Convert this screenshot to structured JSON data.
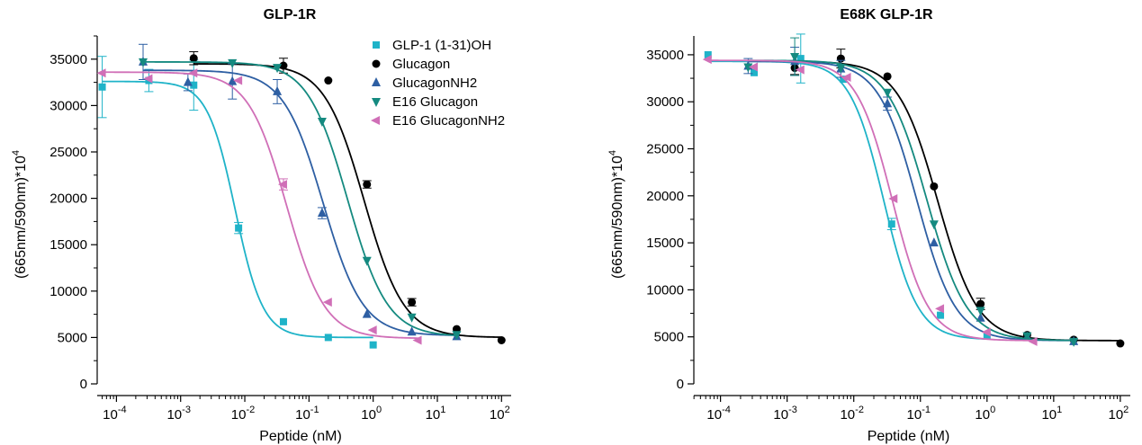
{
  "chart_data": [
    {
      "type": "scatter",
      "title": "GLP-1R",
      "xlabel": "Peptide (nM)",
      "ylabel": "(665nm/590nm)*10",
      "ylabel_sup": "4",
      "x_scale": "log",
      "xlim_exp": [
        -4.3,
        2.15
      ],
      "ylim": [
        0,
        37500
      ],
      "yticks": [
        0,
        5000,
        10000,
        15000,
        20000,
        25000,
        30000,
        35000
      ],
      "xticks": [
        {
          "base": "10",
          "exp": "-4",
          "value": 0.0001
        },
        {
          "base": "10",
          "exp": "-3",
          "value": 0.001
        },
        {
          "base": "10",
          "exp": "-2",
          "value": 0.01
        },
        {
          "base": "10",
          "exp": "-1",
          "value": 0.1
        },
        {
          "base": "10",
          "exp": "0",
          "value": 1
        },
        {
          "base": "10",
          "exp": "1",
          "value": 10
        },
        {
          "base": "10",
          "exp": "2",
          "value": 100
        }
      ],
      "legend": {
        "position": "top-right"
      },
      "series": [
        {
          "name": "GLP-1 (1-31)OH",
          "color": "#1fb3c8",
          "marker": "square",
          "x": [
            6e-05,
            0.00032,
            0.0016,
            0.008,
            0.04,
            0.2,
            1.0
          ],
          "y": [
            32000,
            32700,
            32200,
            16800,
            6700,
            5000,
            4200
          ],
          "err": [
            3300,
            1200,
            2700,
            600,
            0,
            0,
            0
          ],
          "fit": {
            "bottom": 5000,
            "top": 32600,
            "log_ec50": -2.15,
            "hill": 2.0
          }
        },
        {
          "name": "Glucagon",
          "color": "#000000",
          "marker": "circle",
          "x": [
            0.0016,
            0.04,
            0.2,
            0.8,
            4,
            20,
            100
          ],
          "y": [
            35100,
            34300,
            32700,
            21500,
            8800,
            5900,
            4700
          ],
          "err": [
            700,
            800,
            0,
            400,
            400,
            0,
            0
          ],
          "fit": {
            "bottom": 5000,
            "top": 34500,
            "log_ec50": -0.14,
            "hill": 1.4
          }
        },
        {
          "name": "GlucagonNH2",
          "color": "#2e5fa3",
          "marker": "triangle-up",
          "x": [
            0.00026,
            0.0013,
            0.0064,
            0.032,
            0.16,
            0.8,
            4,
            20
          ],
          "y": [
            34700,
            32500,
            32600,
            31500,
            18400,
            7500,
            5600,
            5100
          ],
          "err": [
            1900,
            900,
            1900,
            1300,
            600,
            0,
            0,
            0
          ],
          "fit": {
            "bottom": 5200,
            "top": 33800,
            "log_ec50": -0.78,
            "hill": 1.4
          }
        },
        {
          "name": "E16 Glucagon",
          "color": "#158a80",
          "marker": "triangle-down",
          "x": [
            0.00026,
            0.0064,
            0.032,
            0.16,
            0.8,
            4,
            20
          ],
          "y": [
            34700,
            34600,
            34100,
            28300,
            13300,
            7200,
            5300
          ],
          "err": [
            0,
            0,
            0,
            0,
            0,
            0,
            0
          ],
          "fit": {
            "bottom": 5100,
            "top": 34700,
            "log_ec50": -0.4,
            "hill": 1.4
          }
        },
        {
          "name": "E16 GlucagonNH2",
          "color": "#d06fb7",
          "marker": "triangle-left",
          "x": [
            6e-05,
            0.00032,
            0.0016,
            0.008,
            0.04,
            0.2,
            1,
            5
          ],
          "y": [
            33500,
            32900,
            33500,
            32700,
            21500,
            8800,
            5800,
            4700
          ],
          "err": [
            0,
            0,
            0,
            0,
            600,
            0,
            0,
            0
          ],
          "fit": {
            "bottom": 4900,
            "top": 33600,
            "log_ec50": -1.35,
            "hill": 1.45
          }
        }
      ]
    },
    {
      "type": "scatter",
      "title": "E68K GLP-1R",
      "xlabel": "Peptide (nM)",
      "ylabel": "(665nm/590nm)*10",
      "ylabel_sup": "4",
      "x_scale": "log",
      "xlim_exp": [
        -4.4,
        2.15
      ],
      "ylim": [
        0,
        37000
      ],
      "yticks": [
        0,
        5000,
        10000,
        15000,
        20000,
        25000,
        30000,
        35000
      ],
      "xticks": [
        {
          "base": "10",
          "exp": "-4",
          "value": 0.0001
        },
        {
          "base": "10",
          "exp": "-3",
          "value": 0.001
        },
        {
          "base": "10",
          "exp": "-2",
          "value": 0.01
        },
        {
          "base": "10",
          "exp": "-1",
          "value": 0.1
        },
        {
          "base": "10",
          "exp": "0",
          "value": 1
        },
        {
          "base": "10",
          "exp": "1",
          "value": 10
        },
        {
          "base": "10",
          "exp": "2",
          "value": 100
        }
      ],
      "series": [
        {
          "name": "GLP-1 (1-31)OH",
          "color": "#1fb3c8",
          "marker": "square",
          "x": [
            6.5e-05,
            0.00032,
            0.0016,
            0.007,
            0.037,
            0.2,
            1.0
          ],
          "y": [
            35000,
            33100,
            34600,
            32400,
            17000,
            7300,
            5100
          ],
          "err": [
            0,
            0,
            2600,
            0,
            600,
            0,
            0
          ],
          "fit": {
            "bottom": 4700,
            "top": 34300,
            "log_ec50": -1.55,
            "hill": 1.7
          }
        },
        {
          "name": "Glucagon",
          "color": "#000000",
          "marker": "circle",
          "x": [
            0.0013,
            0.0064,
            0.032,
            0.16,
            0.8,
            4,
            20,
            100
          ],
          "y": [
            33600,
            34600,
            32700,
            21000,
            8500,
            5200,
            4700,
            4300
          ],
          "err": [
            700,
            1000,
            0,
            0,
            600,
            0,
            0,
            0
          ],
          "fit": {
            "bottom": 4600,
            "top": 34300,
            "log_ec50": -0.74,
            "hill": 1.45
          }
        },
        {
          "name": "GlucagonNH2",
          "color": "#2e5fa3",
          "marker": "triangle-up",
          "x": [
            0.00026,
            0.0013,
            0.0064,
            0.032,
            0.16,
            0.8,
            4,
            20
          ],
          "y": [
            33800,
            34300,
            33500,
            29800,
            15000,
            7000,
            5000,
            4500
          ],
          "err": [
            800,
            1500,
            900,
            700,
            0,
            0,
            0,
            0
          ],
          "fit": {
            "bottom": 4600,
            "top": 34300,
            "log_ec50": -1.05,
            "hill": 1.5
          }
        },
        {
          "name": "E16 Glucagon",
          "color": "#158a80",
          "marker": "triangle-down",
          "x": [
            0.00026,
            0.0013,
            0.0064,
            0.032,
            0.16,
            0.8,
            4,
            20
          ],
          "y": [
            33700,
            34800,
            33600,
            31000,
            17000,
            7800,
            5100,
            4500
          ],
          "err": [
            0,
            2000,
            0,
            0,
            0,
            0,
            0,
            0
          ],
          "fit": {
            "bottom": 4600,
            "top": 34400,
            "log_ec50": -0.9,
            "hill": 1.45
          }
        },
        {
          "name": "E16 GlucagonNH2",
          "color": "#d06fb7",
          "marker": "triangle-left",
          "x": [
            6.5e-05,
            0.00032,
            0.0016,
            0.008,
            0.04,
            0.2,
            1,
            5
          ],
          "y": [
            34500,
            33700,
            33400,
            32600,
            19700,
            8000,
            5500,
            4500
          ],
          "err": [
            0,
            0,
            0,
            0,
            0,
            0,
            0,
            0
          ],
          "fit": {
            "bottom": 4600,
            "top": 34400,
            "log_ec50": -1.42,
            "hill": 1.6
          }
        }
      ]
    }
  ]
}
